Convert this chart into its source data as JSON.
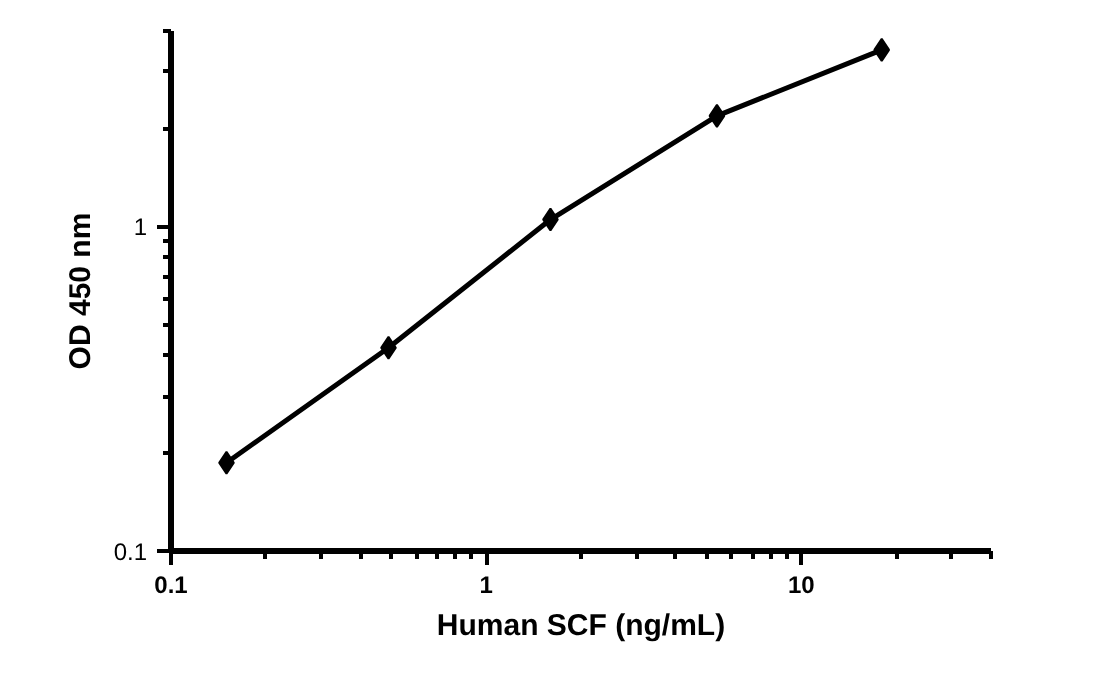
{
  "chart_data": {
    "type": "line",
    "xlabel": "Human SCF (ng/mL)",
    "ylabel": "OD 450 nm",
    "log": "xy",
    "x": [
      0.15,
      0.49,
      1.6,
      5.4,
      18
    ],
    "series": [
      {
        "color": "#000000",
        "values": [
          0.187,
          0.423,
          1.05,
          2.19,
          3.5
        ]
      }
    ],
    "xlim": [
      0.1,
      40
    ],
    "ylim": [
      0.1,
      4
    ],
    "xticks": [
      0.1,
      1,
      10
    ],
    "yticks": [
      0.1,
      1
    ],
    "marker": "diamond",
    "line_style": "solid",
    "grid": false
  }
}
